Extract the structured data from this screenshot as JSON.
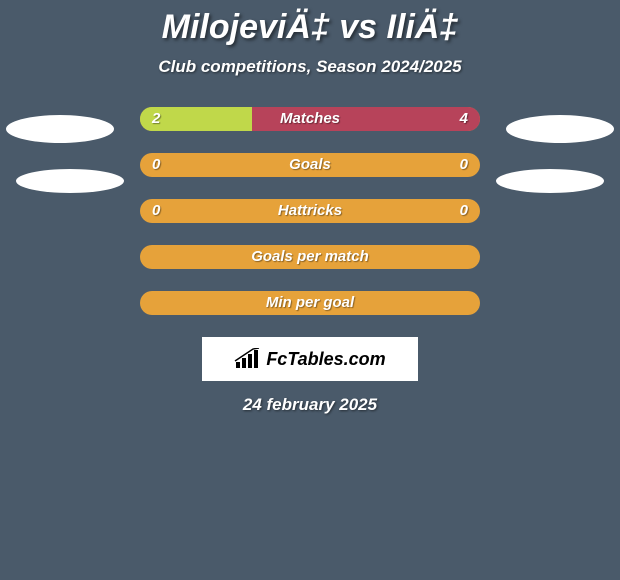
{
  "header": {
    "title": "MilojeviÄ‡ vs IliÄ‡",
    "subtitle": "Club competitions, Season 2024/2025"
  },
  "colors": {
    "left_fill": "#c0d84a",
    "right_fill": "#b7435a",
    "bar_bg": "#e6a23a",
    "background": "#4a5a6a",
    "ellipse": "#ffffff",
    "text": "#ffffff"
  },
  "bars": [
    {
      "label": "Matches",
      "left_value": "2",
      "right_value": "4",
      "left_pct": 33,
      "right_pct": 67
    },
    {
      "label": "Goals",
      "left_value": "0",
      "right_value": "0",
      "left_pct": 0,
      "right_pct": 0
    },
    {
      "label": "Hattricks",
      "left_value": "0",
      "right_value": "0",
      "left_pct": 0,
      "right_pct": 0
    },
    {
      "label": "Goals per match",
      "left_value": "",
      "right_value": "",
      "left_pct": 0,
      "right_pct": 0
    },
    {
      "label": "Min per goal",
      "left_value": "",
      "right_value": "",
      "left_pct": 0,
      "right_pct": 0
    }
  ],
  "branding": {
    "text": "FcTables.com"
  },
  "footer": {
    "date": "24 february 2025"
  }
}
